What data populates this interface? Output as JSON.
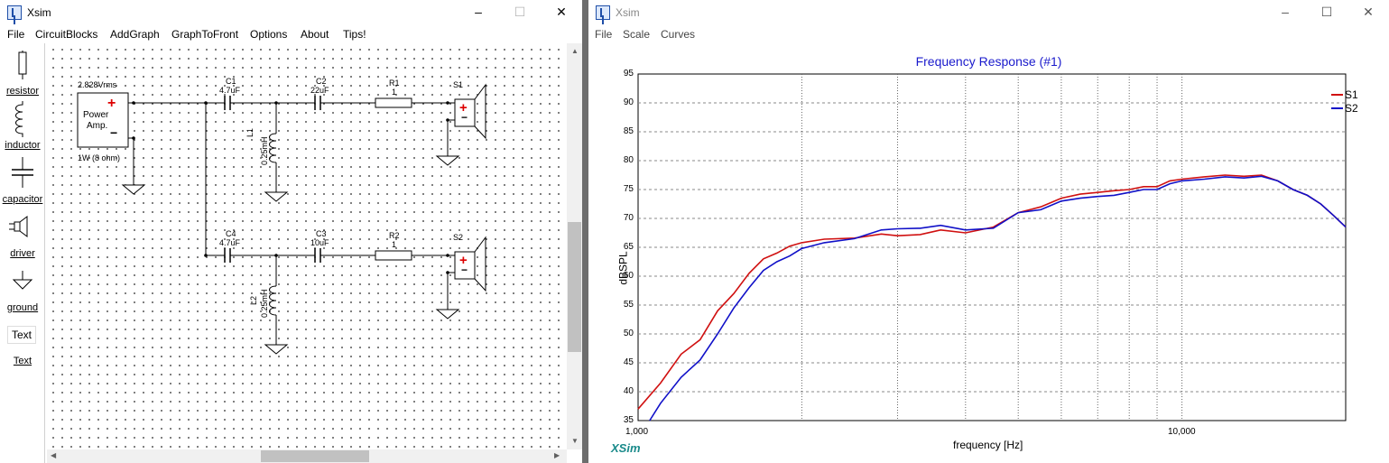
{
  "circuit_window": {
    "title": "Xsim",
    "menu": [
      "File",
      "CircuitBlocks",
      "AddGraph",
      "GraphToFront",
      "Options",
      "About",
      "Tips!"
    ],
    "palette": [
      {
        "label": "resistor",
        "icon": "resistor-icon"
      },
      {
        "label": "inductor",
        "icon": "inductor-icon"
      },
      {
        "label": "capacitor",
        "icon": "capacitor-icon"
      },
      {
        "label": "driver",
        "icon": "driver-icon"
      },
      {
        "label": "ground",
        "icon": "ground-icon"
      },
      {
        "label": "Text",
        "icon": "text-icon",
        "sample": "Text"
      }
    ],
    "amp": {
      "voltage": "2.828Vrms",
      "line1": "Power",
      "line2": "Amp.",
      "plus": "+",
      "minus": "−",
      "load": "1W (8 ohm)"
    },
    "components": {
      "c1": {
        "name": "C1",
        "value": "4.7uF"
      },
      "c2": {
        "name": "C2",
        "value": "22uF"
      },
      "r1": {
        "name": "R1",
        "value": "1"
      },
      "s1": {
        "name": "S1"
      },
      "l1": {
        "name": "L1",
        "value": "0.25mH"
      },
      "c4": {
        "name": "C4",
        "value": "4.7uF"
      },
      "c3": {
        "name": "C3",
        "value": "10uF"
      },
      "r2": {
        "name": "R2",
        "value": "1"
      },
      "s2": {
        "name": "S2"
      },
      "l2": {
        "name": "L2",
        "value": "0.25mH"
      }
    }
  },
  "graph_window": {
    "title": "Xsim",
    "menu": [
      "File",
      "Scale",
      "Curves"
    ],
    "brand": "XSim",
    "colors": {
      "s1": "#d01010",
      "s2": "#1010c8",
      "title": "#1a1acc"
    }
  },
  "chart_data": {
    "type": "line",
    "title": "Frequency Response (#1)",
    "xlabel": "frequency [Hz]",
    "ylabel": "dBSPL",
    "x_scale": "log",
    "xlim": [
      1000,
      20000
    ],
    "ylim": [
      35,
      95
    ],
    "y_ticks": [
      35,
      40,
      45,
      50,
      55,
      60,
      65,
      70,
      75,
      80,
      85,
      90,
      95
    ],
    "x_tick_labels": [
      {
        "value": 1000,
        "label": "1,000"
      },
      {
        "value": 10000,
        "label": "10,000"
      }
    ],
    "grid": true,
    "legend": "right",
    "series": [
      {
        "name": "S1",
        "color": "#d01010",
        "x": [
          1000,
          1100,
          1200,
          1300,
          1400,
          1500,
          1600,
          1700,
          1800,
          1900,
          2000,
          2200,
          2500,
          2800,
          3000,
          3300,
          3600,
          4000,
          4500,
          5000,
          5500,
          6000,
          6500,
          7000,
          7500,
          8000,
          8500,
          9000,
          9500,
          10000,
          11000,
          12000,
          13000,
          14000,
          15000,
          16000,
          17000,
          18000,
          19000,
          20000
        ],
        "y": [
          37.0,
          41.5,
          46.5,
          49.0,
          54.0,
          57.0,
          60.5,
          63.0,
          64.0,
          65.2,
          65.8,
          66.4,
          66.6,
          67.3,
          67.0,
          67.2,
          68.0,
          67.5,
          68.5,
          71.0,
          72.0,
          73.5,
          74.2,
          74.5,
          74.8,
          75.0,
          75.5,
          75.5,
          76.5,
          76.8,
          77.2,
          77.5,
          77.3,
          77.5,
          76.5,
          75.0,
          74.0,
          72.5,
          70.5,
          68.5
        ]
      },
      {
        "name": "S2",
        "color": "#1010c8",
        "x": [
          1050,
          1100,
          1200,
          1300,
          1400,
          1500,
          1600,
          1700,
          1800,
          1900,
          2000,
          2200,
          2500,
          2800,
          3000,
          3300,
          3600,
          4000,
          4500,
          5000,
          5500,
          6000,
          6500,
          7000,
          7500,
          8000,
          8500,
          9000,
          9500,
          10000,
          11000,
          12000,
          13000,
          14000,
          15000,
          16000,
          17000,
          18000,
          19000,
          20000
        ],
        "y": [
          35.0,
          38.0,
          42.5,
          45.5,
          50.0,
          54.5,
          58.0,
          61.0,
          62.5,
          63.5,
          64.8,
          65.8,
          66.5,
          68.0,
          68.2,
          68.3,
          68.8,
          68.0,
          68.3,
          71.0,
          71.5,
          73.0,
          73.5,
          73.8,
          74.0,
          74.5,
          75.0,
          75.0,
          76.0,
          76.5,
          76.8,
          77.2,
          77.0,
          77.3,
          76.5,
          75.0,
          74.0,
          72.5,
          70.5,
          68.5
        ]
      }
    ]
  }
}
